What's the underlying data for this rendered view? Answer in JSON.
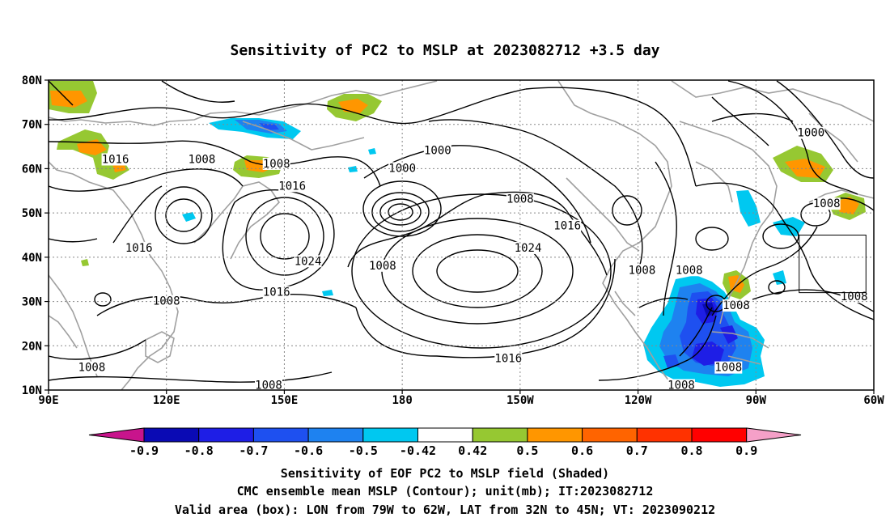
{
  "title": "Sensitivity of PC2 to MSLP at 2023082712 +3.5 day",
  "axes": {
    "lat_labels": [
      "80N",
      "70N",
      "60N",
      "50N",
      "40N",
      "30N",
      "20N",
      "10N"
    ],
    "lon_labels": [
      "90E",
      "120E",
      "150E",
      "180",
      "150W",
      "120W",
      "90W",
      "60W"
    ]
  },
  "contour_labels": [
    {
      "text": "1016",
      "lon": 107,
      "lat": 62
    },
    {
      "text": "1008",
      "lon": 129,
      "lat": 62
    },
    {
      "text": "1008",
      "lon": 148,
      "lat": 61
    },
    {
      "text": "1016",
      "lon": 152,
      "lat": 56
    },
    {
      "text": "1016",
      "lon": 113,
      "lat": 42
    },
    {
      "text": "1024",
      "lon": 156,
      "lat": 39
    },
    {
      "text": "1016",
      "lon": 148,
      "lat": 32
    },
    {
      "text": "1008",
      "lon": 120,
      "lat": 30
    },
    {
      "text": "1008",
      "lon": 101,
      "lat": 15
    },
    {
      "text": "1008",
      "lon": 146,
      "lat": 11
    },
    {
      "text": "1000",
      "lon": 189,
      "lat": 64
    },
    {
      "text": "1000",
      "lon": 180,
      "lat": 60
    },
    {
      "text": "1008",
      "lon": 175,
      "lat": 38
    },
    {
      "text": "1008",
      "lon": -150,
      "lat": 53
    },
    {
      "text": "1016",
      "lon": -138,
      "lat": 47
    },
    {
      "text": "1024",
      "lon": -148,
      "lat": 42
    },
    {
      "text": "1016",
      "lon": -153,
      "lat": 17
    },
    {
      "text": "1008",
      "lon": -119,
      "lat": 37
    },
    {
      "text": "1008",
      "lon": -107,
      "lat": 37
    },
    {
      "text": "1008",
      "lon": -95,
      "lat": 29
    },
    {
      "text": "1008",
      "lon": -97,
      "lat": 15
    },
    {
      "text": "1008",
      "lon": -109,
      "lat": 11
    },
    {
      "text": "1000",
      "lon": -76,
      "lat": 68
    },
    {
      "text": "1008",
      "lon": -72,
      "lat": 52
    },
    {
      "text": "1008",
      "lon": -65,
      "lat": 31
    }
  ],
  "colorbar": {
    "labels": [
      "-0.9",
      "-0.8",
      "-0.7",
      "-0.6",
      "-0.5",
      "-0.42",
      "0.42",
      "0.5",
      "0.6",
      "0.7",
      "0.8",
      "0.9"
    ],
    "colors": [
      "#0a0ab4",
      "#1e1ee6",
      "#1e50f0",
      "#1e82f0",
      "#00c8f0",
      "#ffffff",
      "#96c832",
      "#ff9600",
      "#ff6400",
      "#ff3200",
      "#ff0000"
    ],
    "under_color": "#c8148c",
    "over_color": "#f5a0c8"
  },
  "caption": [
    "Sensitivity of EOF PC2 to MSLP field (Shaded)",
    "CMC ensemble mean MSLP (Contour); unit(mb); IT:2023082712",
    "Valid area (box): LON from 79W to 62W, LAT from 32N to 45N; VT: 2023090212"
  ],
  "valid_box": {
    "lon_min": -79,
    "lon_max": -62,
    "lat_min": 32,
    "lat_max": 45
  }
}
